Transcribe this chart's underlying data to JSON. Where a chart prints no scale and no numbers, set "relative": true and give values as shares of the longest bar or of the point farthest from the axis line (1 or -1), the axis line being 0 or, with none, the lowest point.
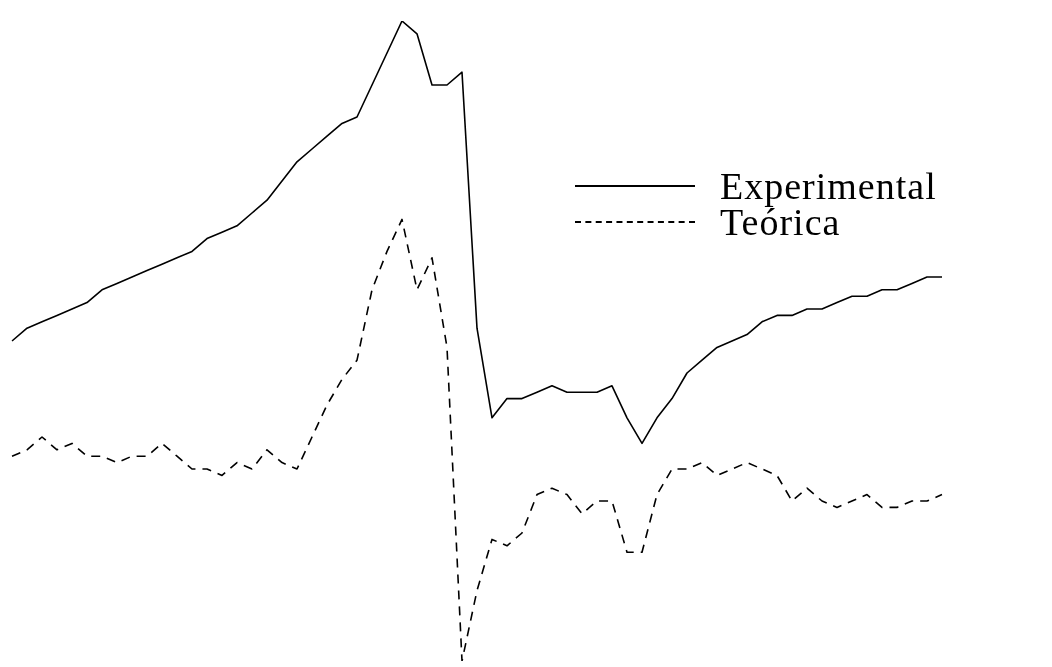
{
  "chart_data": {
    "type": "line",
    "relative": true,
    "legend": "top right",
    "marker": "none",
    "categories": [
      null,
      null,
      null,
      null,
      null,
      null,
      null,
      null,
      null,
      null,
      null,
      null,
      null,
      null,
      null,
      null,
      null,
      null,
      null,
      null,
      null,
      null,
      null,
      null,
      null,
      null,
      null,
      null,
      null,
      null,
      null,
      null,
      null,
      null,
      null,
      null,
      null,
      null,
      null,
      null,
      null,
      null,
      null,
      null,
      null,
      null,
      null,
      null,
      null,
      null,
      null,
      null,
      null,
      null,
      null,
      null,
      null,
      null,
      null,
      null,
      null,
      null,
      null
    ],
    "series": [
      {
        "name": "Experimental",
        "color": "#000000",
        "line_style": "solid",
        "values": [
          0.5,
          0.52,
          0.53,
          0.54,
          0.55,
          0.56,
          0.58,
          0.59,
          0.6,
          0.61,
          0.62,
          0.63,
          0.64,
          0.66,
          0.67,
          0.68,
          0.7,
          0.72,
          0.75,
          0.78,
          0.8,
          0.82,
          0.84,
          0.85,
          0.9,
          0.95,
          1.0,
          0.98,
          0.9,
          0.9,
          0.92,
          0.52,
          0.38,
          0.41,
          0.41,
          0.42,
          0.43,
          0.42,
          0.42,
          0.42,
          0.43,
          0.38,
          0.34,
          0.38,
          0.41,
          0.45,
          0.47,
          0.49,
          0.5,
          0.51,
          0.53,
          0.54,
          0.54,
          0.55,
          0.55,
          0.56,
          0.57,
          0.57,
          0.58,
          0.58,
          0.59,
          0.6,
          0.6
        ]
      },
      {
        "name": "Teórica",
        "color": "#000000",
        "line_style": "dashed",
        "values": [
          0.32,
          0.33,
          0.35,
          0.33,
          0.34,
          0.32,
          0.32,
          0.31,
          0.32,
          0.32,
          0.34,
          0.32,
          0.3,
          0.3,
          0.29,
          0.31,
          0.3,
          0.33,
          0.31,
          0.3,
          0.35,
          0.4,
          0.44,
          0.47,
          0.58,
          0.64,
          0.69,
          0.58,
          0.63,
          0.49,
          0.0,
          0.11,
          0.19,
          0.18,
          0.2,
          0.26,
          0.27,
          0.26,
          0.23,
          0.25,
          0.25,
          0.17,
          0.17,
          0.26,
          0.3,
          0.3,
          0.31,
          0.29,
          0.3,
          0.31,
          0.3,
          0.29,
          0.25,
          0.27,
          0.25,
          0.24,
          0.25,
          0.26,
          0.24,
          0.24,
          0.25,
          0.25,
          0.26
        ]
      }
    ]
  }
}
